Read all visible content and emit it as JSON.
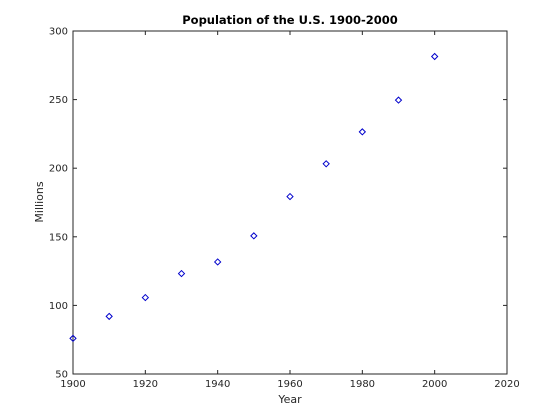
{
  "chart_data": {
    "type": "scatter",
    "title": "Population of the U.S. 1900-2000",
    "xlabel": "Year",
    "ylabel": "Millions",
    "xlim": [
      1900,
      2020
    ],
    "ylim": [
      50,
      300
    ],
    "xticks": [
      1900,
      1920,
      1940,
      1960,
      1980,
      2000,
      2020
    ],
    "yticks": [
      50,
      100,
      150,
      200,
      250,
      300
    ],
    "grid": false,
    "marker": "diamond",
    "marker_color": "#0000cc",
    "x": [
      1900,
      1910,
      1920,
      1930,
      1940,
      1950,
      1960,
      1970,
      1980,
      1990,
      2000
    ],
    "y": [
      75.995,
      91.972,
      105.711,
      123.203,
      131.669,
      150.697,
      179.323,
      203.212,
      226.505,
      249.633,
      281.422
    ]
  }
}
